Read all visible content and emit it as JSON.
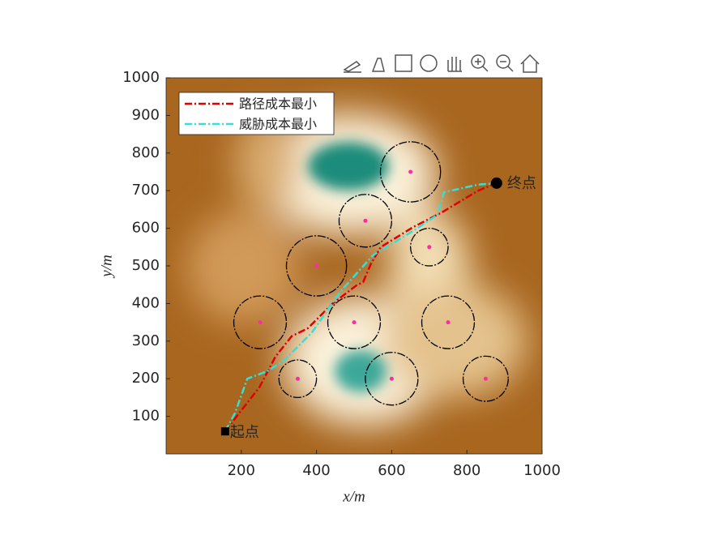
{
  "chart_data": {
    "type": "line",
    "xlabel": "x/m",
    "ylabel": "y/m",
    "xlim": [
      0,
      1000
    ],
    "ylim": [
      0,
      1000
    ],
    "xticks": [
      200,
      400,
      600,
      800,
      1000
    ],
    "yticks": [
      100,
      200,
      300,
      400,
      500,
      600,
      700,
      800,
      900,
      1000
    ],
    "legend": "upper left",
    "series": [
      {
        "name": "路径成本最小",
        "color": "#e00000",
        "x": [
          157,
          194,
          248,
          291,
          334,
          377,
          442,
          506,
          524,
          545,
          571,
          657,
          733,
          830,
          879
        ],
        "values": [
          60,
          108,
          177,
          259,
          313,
          334,
          399,
          448,
          457,
          506,
          550,
          603,
          642,
          700,
          720
        ]
      },
      {
        "name": "威胁成本最小",
        "color": "#33e0d8",
        "x": [
          157,
          183,
          216,
          269,
          313,
          388,
          463,
          550,
          657,
          722,
          739,
          830,
          879
        ],
        "values": [
          60,
          108,
          200,
          220,
          248,
          323,
          431,
          528,
          593,
          636,
          696,
          716,
          720
        ]
      }
    ],
    "threats": {
      "x": [
        650,
        530,
        700,
        400,
        250,
        500,
        750,
        350,
        600,
        850
      ],
      "y": [
        750,
        620,
        550,
        500,
        350,
        350,
        350,
        200,
        200,
        200
      ],
      "r": [
        80,
        70,
        50,
        80,
        70,
        70,
        70,
        50,
        70,
        60
      ]
    },
    "start": {
      "x": 157,
      "y": 60,
      "label": "起点"
    },
    "end": {
      "x": 879,
      "y": 720,
      "label": "终点"
    }
  }
}
